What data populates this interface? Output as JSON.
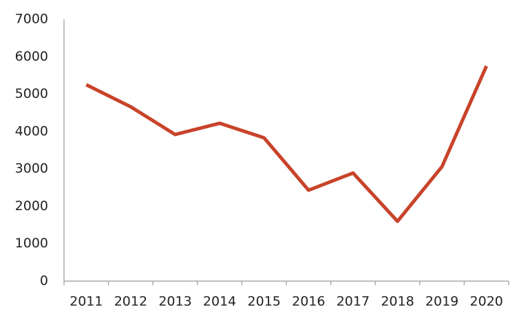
{
  "chart_data": {
    "type": "line",
    "categories": [
      "2011",
      "2012",
      "2013",
      "2014",
      "2015",
      "2016",
      "2017",
      "2018",
      "2019",
      "2020"
    ],
    "values": [
      5250,
      4660,
      3920,
      4220,
      3830,
      2430,
      2890,
      1600,
      3060,
      5750
    ],
    "color": "#c8432a",
    "ylim": [
      0,
      7000
    ],
    "yticks": [
      0,
      1000,
      2000,
      3000,
      4000,
      5000,
      6000,
      7000
    ],
    "grid": false
  }
}
